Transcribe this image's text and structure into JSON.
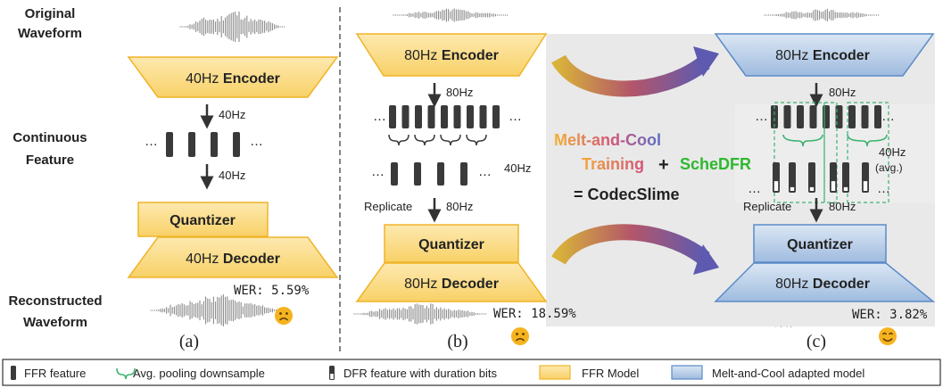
{
  "labels": {
    "original_line1": "Original",
    "original_line2": "Waveform",
    "continuous_line1": "Continuous",
    "continuous_line2": "Feature",
    "reconstructed_line1": "Reconstructed",
    "reconstructed_line2": "Waveform"
  },
  "panel_a": {
    "encoder_rate": "40Hz",
    "encoder_word": "Encoder",
    "rate_label": "40Hz",
    "rate_label2": "40Hz",
    "quantizer": "Quantizer",
    "decoder_rate": "40Hz",
    "decoder_word": "Decoder",
    "wer": "WER: 5.59%",
    "caption": "(a)"
  },
  "panel_b": {
    "encoder_rate": "80Hz",
    "encoder_word": "Encoder",
    "rate_label": "80Hz",
    "pooled_rate": "40Hz",
    "replicate": "Replicate",
    "replicate_rate": "80Hz",
    "quantizer": "Quantizer",
    "decoder_rate": "80Hz",
    "decoder_word": "Decoder",
    "wer": "WER: 18.59%",
    "caption": "(b)"
  },
  "middle": {
    "melt": "Melt-and-Cool",
    "training": "Training",
    "plus": "+",
    "schedfr": "ScheDFR",
    "equals": "= CodecSlime"
  },
  "panel_c": {
    "encoder_rate": "80Hz",
    "encoder_word": "Encoder",
    "rate_label": "80Hz",
    "pooled_rate": "40Hz",
    "pooled_note": "(avg.)",
    "replicate": "Replicate",
    "replicate_rate": "80Hz",
    "quantizer": "Quantizer",
    "decoder_rate": "80Hz",
    "decoder_word": "Decoder",
    "wer": "WER: 3.82%",
    "caption": "(c)"
  },
  "ellipsis": "…",
  "legend": {
    "ffr_feature": "FFR feature",
    "avg_pool": "Avg. pooling downsample",
    "dfr_feature": "DFR feature with duration bits",
    "ffr_model": "FFR Model",
    "adapted_model": "Melt-and-Cool adapted model"
  },
  "colors": {
    "ffr_fill": "#fbdc8c",
    "ffr_stroke": "#f0b429",
    "adapted_fill": "#b8cde6",
    "adapted_stroke": "#5b8bc7",
    "brace": "#3cb371",
    "schedfr": "#2eb82e",
    "feature": "#3a3a3a",
    "wave": "#8a8a8a"
  },
  "icons": [
    "sad-face-icon",
    "smile-face-icon",
    "waveform-icon",
    "curved-arrow-icon",
    "down-arrow-icon",
    "brace-icon"
  ]
}
